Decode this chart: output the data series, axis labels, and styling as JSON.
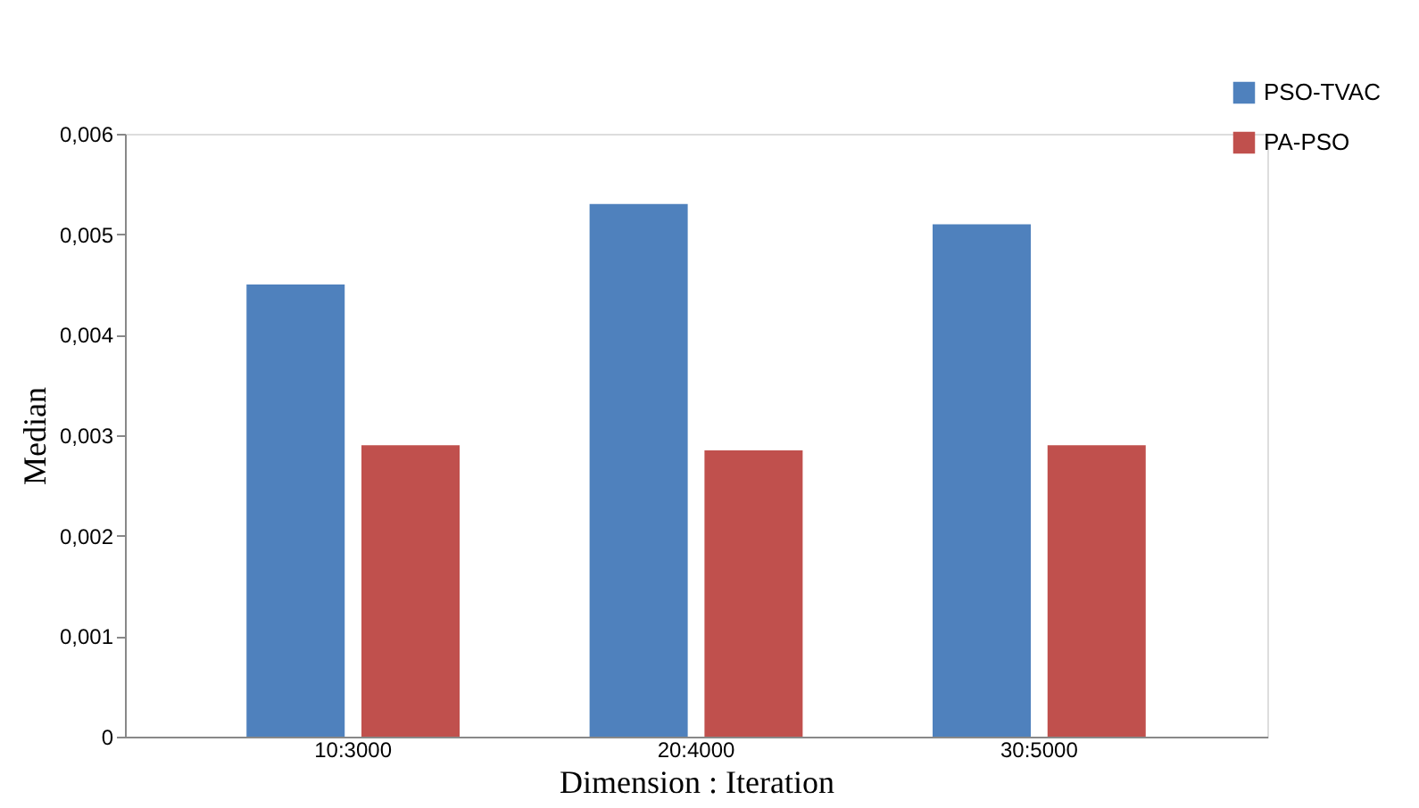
{
  "chart_data": {
    "type": "bar",
    "xlabel": "Dimension : Iteration",
    "ylabel": "Median",
    "categories": [
      "10:3000",
      "20:4000",
      "30:5000"
    ],
    "series": [
      {
        "name": "PSO-TVAC",
        "color": "#4f81bd",
        "values": [
          0.0045,
          0.0053,
          0.0051
        ]
      },
      {
        "name": "PA-PSO",
        "color": "#c0504d",
        "values": [
          0.0029,
          0.00285,
          0.0029
        ]
      }
    ],
    "ylim": [
      0,
      0.006
    ],
    "yticks": [
      {
        "value": 0,
        "label": "0"
      },
      {
        "value": 0.001,
        "label": "0,001"
      },
      {
        "value": 0.002,
        "label": "0,002"
      },
      {
        "value": 0.003,
        "label": "0,003"
      },
      {
        "value": 0.004,
        "label": "0,004"
      },
      {
        "value": 0.005,
        "label": "0,005"
      },
      {
        "value": 0.006,
        "label": "0,006"
      }
    ],
    "grid": false,
    "legend": "top right"
  }
}
